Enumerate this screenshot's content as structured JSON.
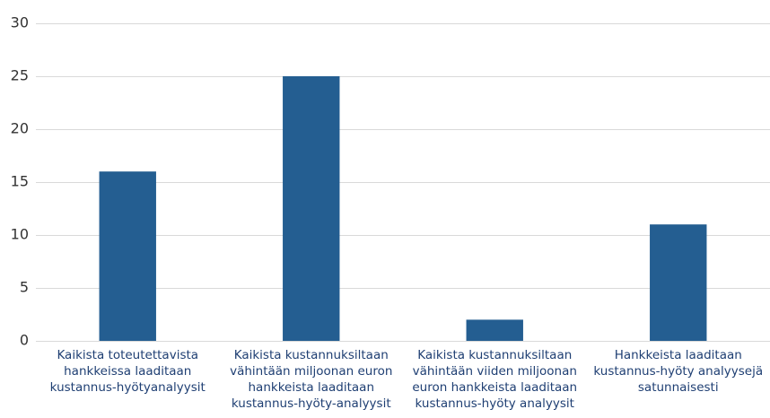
{
  "chart_data": {
    "type": "bar",
    "categories": [
      "Kaikista toteutettavista hankkeissa laaditaan kustannus-hyötyanalyysit",
      "Kaikista kustannuksiltaan vähintään miljoonan euron hankkeista laaditaan kustannus-hyöty-analyysit",
      "Kaikista kustannuksiltaan vähintään viiden miljoonan euron hankkeista laaditaan kustannus-hyöty analyysit",
      "Hankkeista laaditaan kustannus-hyöty analyysejä satunnaisesti"
    ],
    "values": [
      16,
      25,
      2,
      11
    ],
    "color": "#245e91",
    "ylim": [
      0,
      30
    ],
    "yticks": [
      0,
      5,
      10,
      15,
      20,
      25,
      30
    ],
    "grid": true
  }
}
